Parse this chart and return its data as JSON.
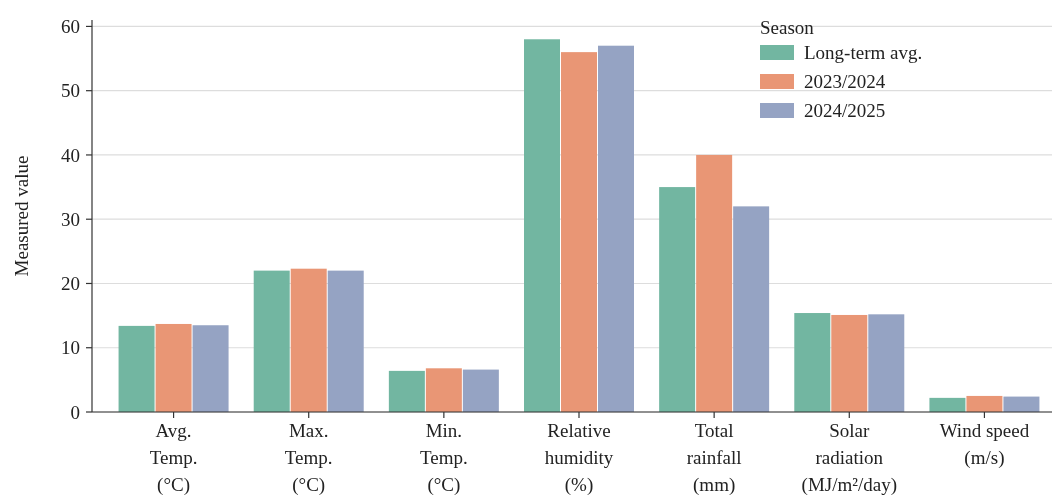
{
  "chart_data": {
    "type": "bar",
    "ylabel": "Measured value",
    "legend_title": "Season",
    "legend": "top right",
    "grid": "y",
    "categories": [
      "Avg.\nTemp.\n(°C)",
      "Max.\nTemp.\n(°C)",
      "Min.\nTemp.\n(°C)",
      "Relative\nhumidity\n(%)",
      "Total\nrainfall\n(mm)",
      "Solar\nradiation\n(MJ/m²/day)",
      "Wind speed\n(m/s)"
    ],
    "ylim": [
      0,
      61
    ],
    "yticks": [
      0,
      10,
      20,
      30,
      40,
      50,
      60
    ],
    "series": [
      {
        "name": "Long-term avg.",
        "color": "#72b6a1",
        "values": [
          13.4,
          22.0,
          6.4,
          58,
          35,
          15.4,
          2.2
        ]
      },
      {
        "name": "2023/2024",
        "color": "#e99675",
        "values": [
          13.7,
          22.3,
          6.8,
          56,
          40,
          15.1,
          2.5
        ]
      },
      {
        "name": "2024/2025",
        "color": "#95a3c3",
        "values": [
          13.5,
          22.0,
          6.6,
          57,
          32,
          15.2,
          2.4
        ]
      }
    ]
  }
}
